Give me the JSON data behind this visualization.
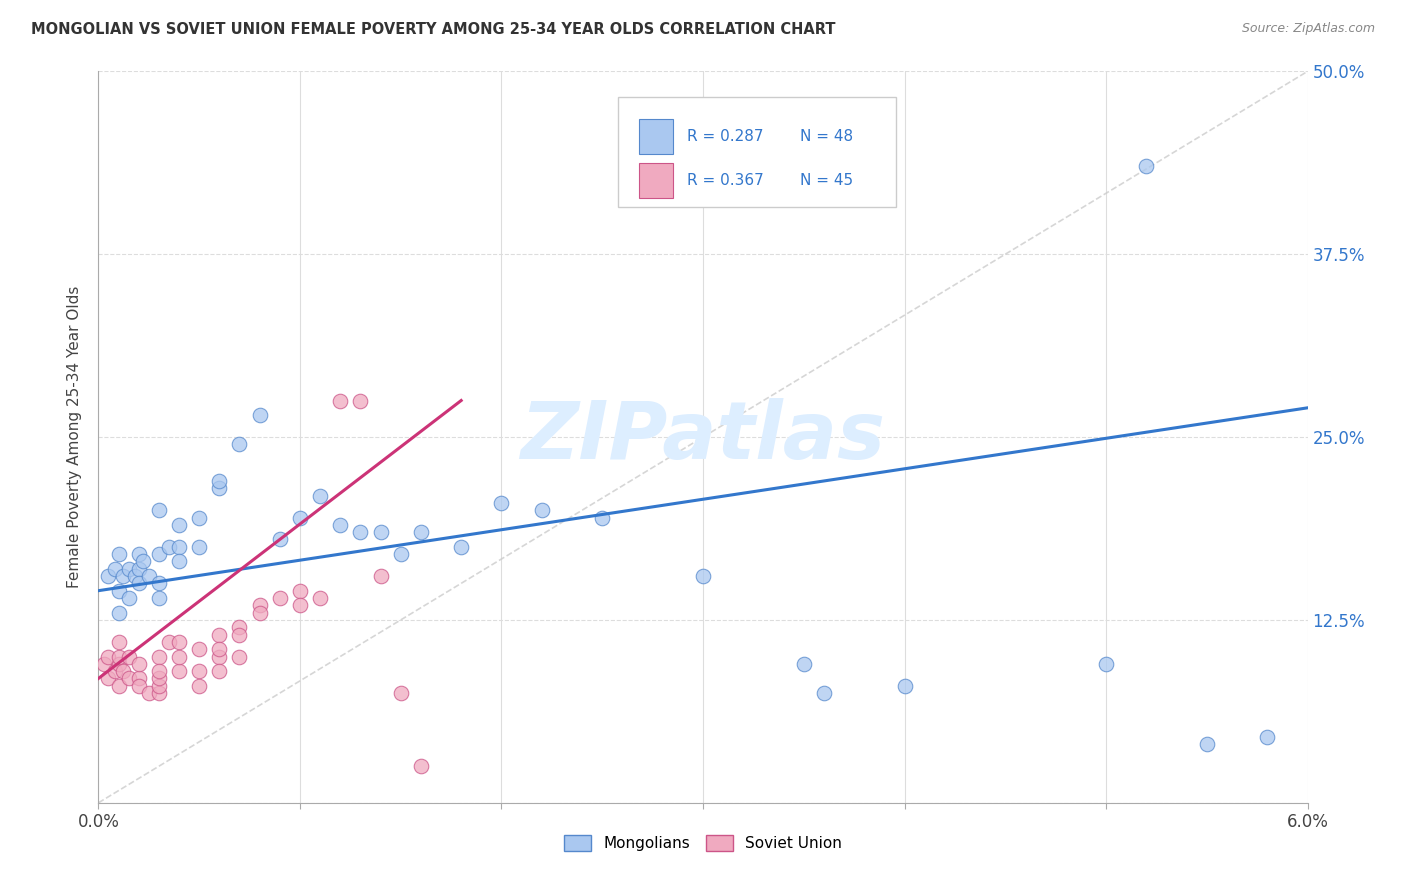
{
  "title": "MONGOLIAN VS SOVIET UNION FEMALE POVERTY AMONG 25-34 YEAR OLDS CORRELATION CHART",
  "source": "Source: ZipAtlas.com",
  "ylabel": "Female Poverty Among 25-34 Year Olds",
  "xlim": [
    0.0,
    0.06
  ],
  "ylim": [
    0.0,
    0.5
  ],
  "yticks": [
    0.0,
    0.125,
    0.25,
    0.375,
    0.5
  ],
  "xticks": [
    0.0,
    0.01,
    0.02,
    0.03,
    0.04,
    0.05,
    0.06
  ],
  "mongolian_color": "#aac8f0",
  "mongolian_edge": "#5588cc",
  "soviet_color": "#f0aac0",
  "soviet_edge": "#cc5588",
  "trend_mongolian_color": "#3377cc",
  "trend_soviet_color": "#cc3377",
  "diagonal_color": "#cccccc",
  "watermark": "ZIPatlas",
  "watermark_color": "#ddeeff",
  "R_mongolian": 0.287,
  "N_mongolian": 48,
  "R_soviet": 0.367,
  "N_soviet": 45,
  "mong_x": [
    0.0005,
    0.0008,
    0.001,
    0.001,
    0.001,
    0.0012,
    0.0015,
    0.0015,
    0.0018,
    0.002,
    0.002,
    0.002,
    0.0022,
    0.0025,
    0.003,
    0.003,
    0.003,
    0.003,
    0.0035,
    0.004,
    0.004,
    0.004,
    0.005,
    0.005,
    0.006,
    0.006,
    0.007,
    0.008,
    0.009,
    0.01,
    0.011,
    0.012,
    0.013,
    0.014,
    0.015,
    0.016,
    0.018,
    0.02,
    0.022,
    0.025,
    0.03,
    0.035,
    0.036,
    0.04,
    0.05,
    0.052,
    0.055,
    0.058
  ],
  "mong_y": [
    0.155,
    0.16,
    0.13,
    0.145,
    0.17,
    0.155,
    0.14,
    0.16,
    0.155,
    0.16,
    0.17,
    0.15,
    0.165,
    0.155,
    0.2,
    0.17,
    0.15,
    0.14,
    0.175,
    0.19,
    0.175,
    0.165,
    0.195,
    0.175,
    0.215,
    0.22,
    0.245,
    0.265,
    0.18,
    0.195,
    0.21,
    0.19,
    0.185,
    0.185,
    0.17,
    0.185,
    0.175,
    0.205,
    0.2,
    0.195,
    0.155,
    0.095,
    0.075,
    0.08,
    0.095,
    0.435,
    0.04,
    0.045
  ],
  "sov_x": [
    0.0003,
    0.0005,
    0.0005,
    0.0008,
    0.001,
    0.001,
    0.001,
    0.001,
    0.0012,
    0.0015,
    0.0015,
    0.002,
    0.002,
    0.002,
    0.0025,
    0.003,
    0.003,
    0.003,
    0.003,
    0.003,
    0.0035,
    0.004,
    0.004,
    0.004,
    0.005,
    0.005,
    0.005,
    0.006,
    0.006,
    0.006,
    0.006,
    0.007,
    0.007,
    0.007,
    0.008,
    0.008,
    0.009,
    0.01,
    0.01,
    0.011,
    0.012,
    0.013,
    0.014,
    0.015,
    0.016
  ],
  "sov_y": [
    0.095,
    0.085,
    0.1,
    0.09,
    0.08,
    0.095,
    0.1,
    0.11,
    0.09,
    0.1,
    0.085,
    0.085,
    0.095,
    0.08,
    0.075,
    0.1,
    0.075,
    0.08,
    0.085,
    0.09,
    0.11,
    0.11,
    0.09,
    0.1,
    0.105,
    0.09,
    0.08,
    0.115,
    0.1,
    0.105,
    0.09,
    0.12,
    0.115,
    0.1,
    0.135,
    0.13,
    0.14,
    0.145,
    0.135,
    0.14,
    0.275,
    0.275,
    0.155,
    0.075,
    0.025
  ],
  "mong_trend_x0": 0.0,
  "mong_trend_y0": 0.145,
  "mong_trend_x1": 0.06,
  "mong_trend_y1": 0.27,
  "sov_trend_x0": 0.0,
  "sov_trend_y0": 0.085,
  "sov_trend_x1": 0.018,
  "sov_trend_y1": 0.275
}
